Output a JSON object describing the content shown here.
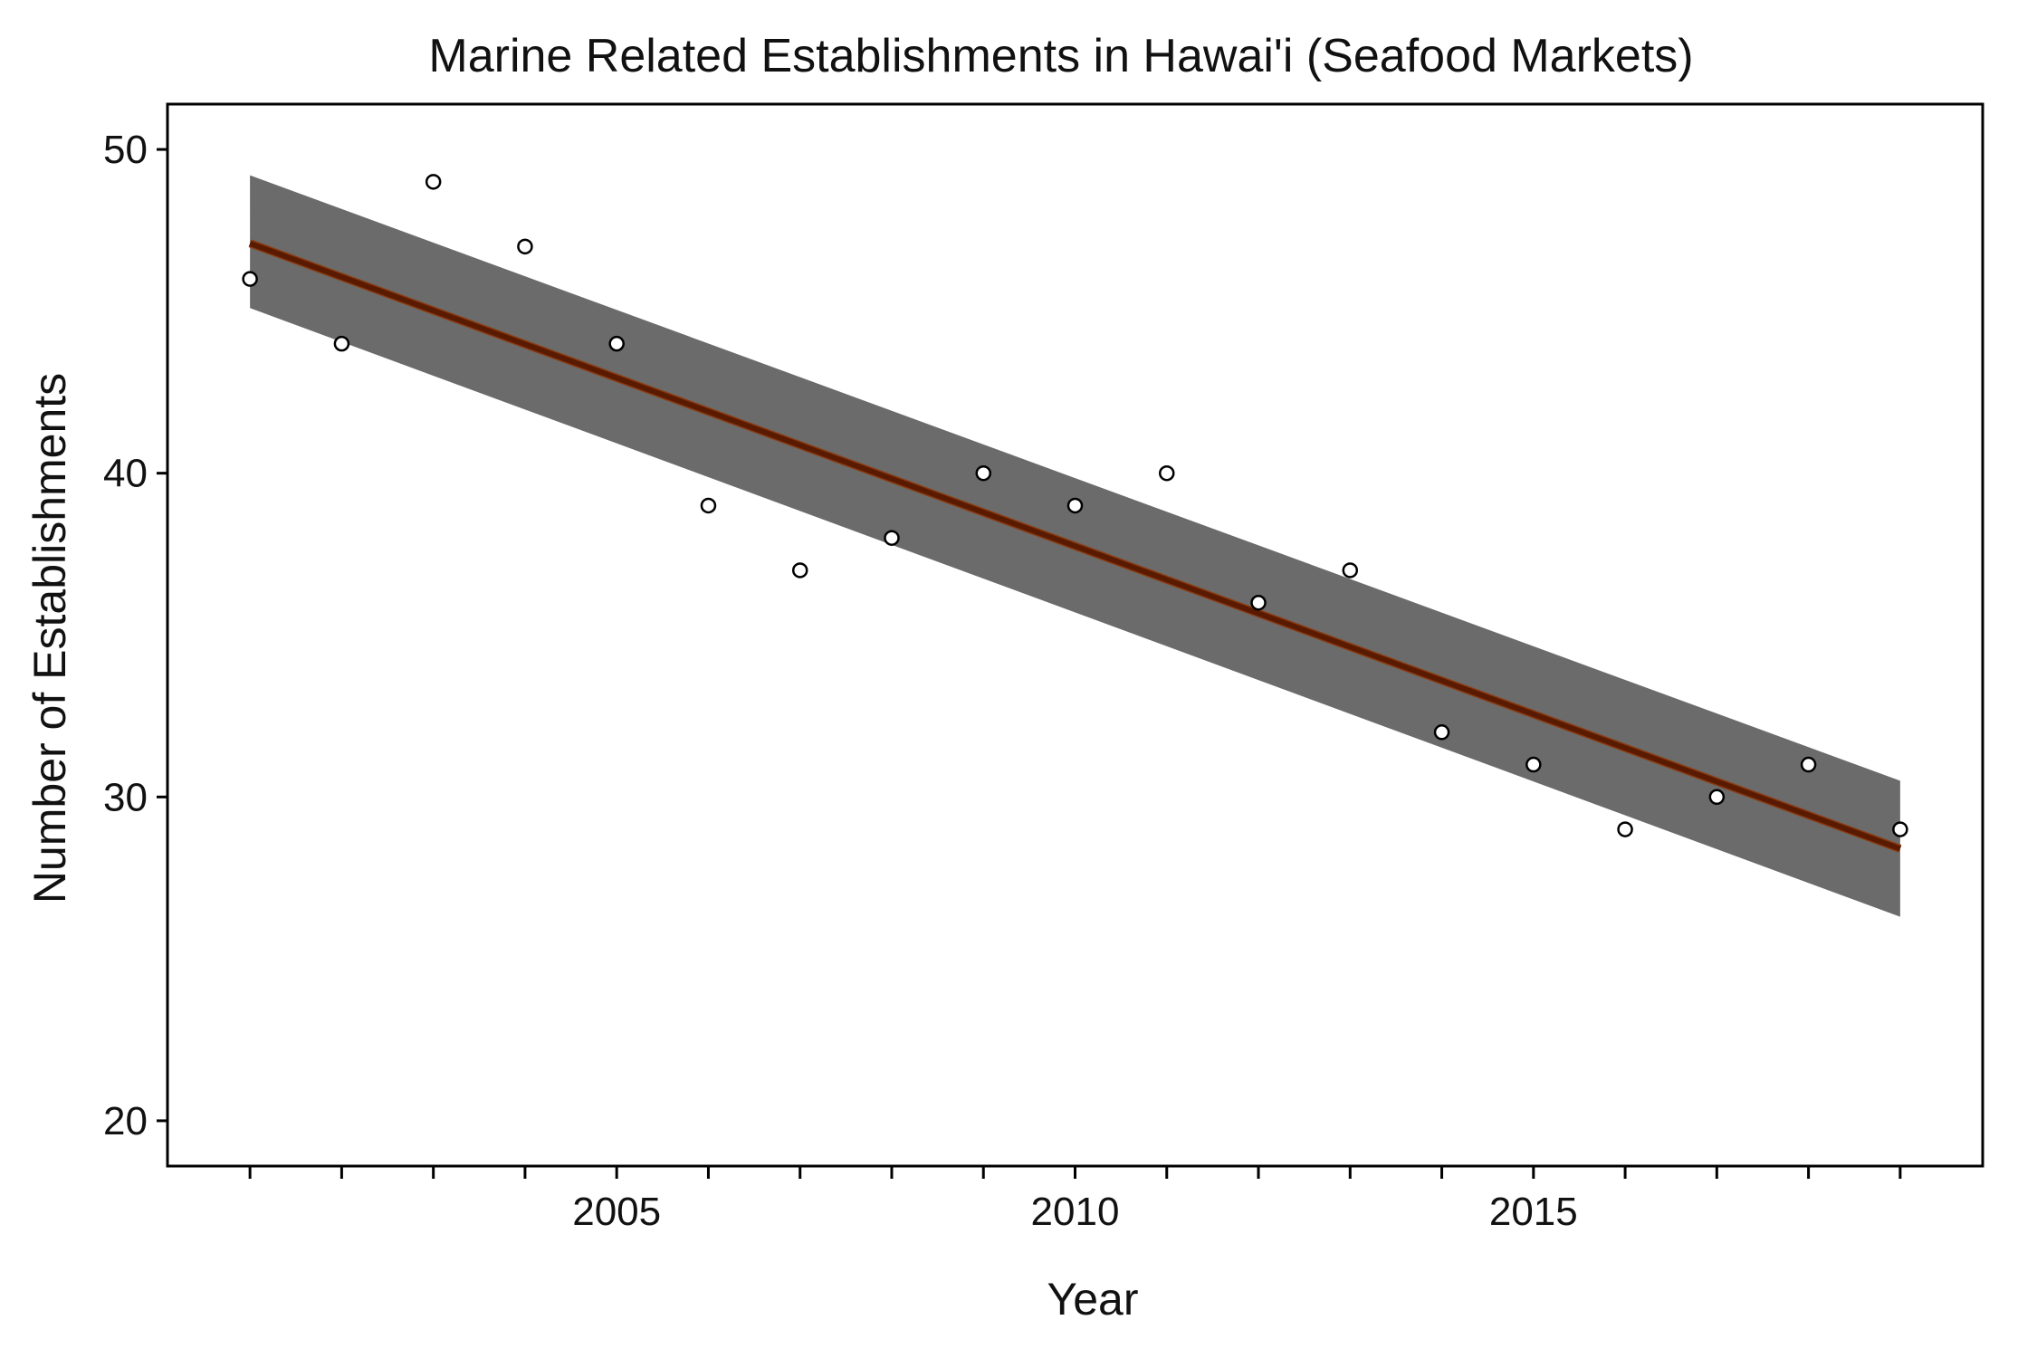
{
  "chart_data": {
    "type": "scatter",
    "title": "Marine Related Establishments in Hawai'i (Seafood Markets)",
    "xlabel": "Year",
    "ylabel": "Number of Establishments",
    "xlim": [
      2000.1,
      2019.9
    ],
    "ylim": [
      18.6,
      51.4
    ],
    "x_ticks": [
      2005,
      2010,
      2015
    ],
    "x_minor_ticks": [
      2001,
      2002,
      2003,
      2004,
      2005,
      2006,
      2007,
      2008,
      2009,
      2010,
      2011,
      2012,
      2013,
      2014,
      2015,
      2016,
      2017,
      2018,
      2019
    ],
    "y_ticks": [
      20,
      30,
      40,
      50
    ],
    "grid": false,
    "series": [
      {
        "type": "scatter",
        "x": [
          2001,
          2002,
          2003,
          2004,
          2005,
          2006,
          2007,
          2008,
          2009,
          2010,
          2011,
          2012,
          2013,
          2014,
          2015,
          2016,
          2017,
          2018,
          2019
        ],
        "y": [
          46,
          44,
          49,
          47,
          44,
          39,
          37,
          38,
          40,
          39,
          40,
          36,
          37,
          32,
          31,
          29,
          30,
          31,
          29
        ]
      }
    ],
    "trend_line": {
      "type": "linear",
      "x": [
        2001,
        2019
      ],
      "y": [
        47.1,
        28.4
      ],
      "band_lower": [
        45.1,
        26.3
      ],
      "band_upper": [
        49.2,
        30.5
      ],
      "line_color": "#5a1a00",
      "band_color": "#6b6b6b"
    },
    "colors": {
      "points_stroke": "#000000",
      "points_fill": "#ffffff",
      "frame": "#000000"
    }
  }
}
